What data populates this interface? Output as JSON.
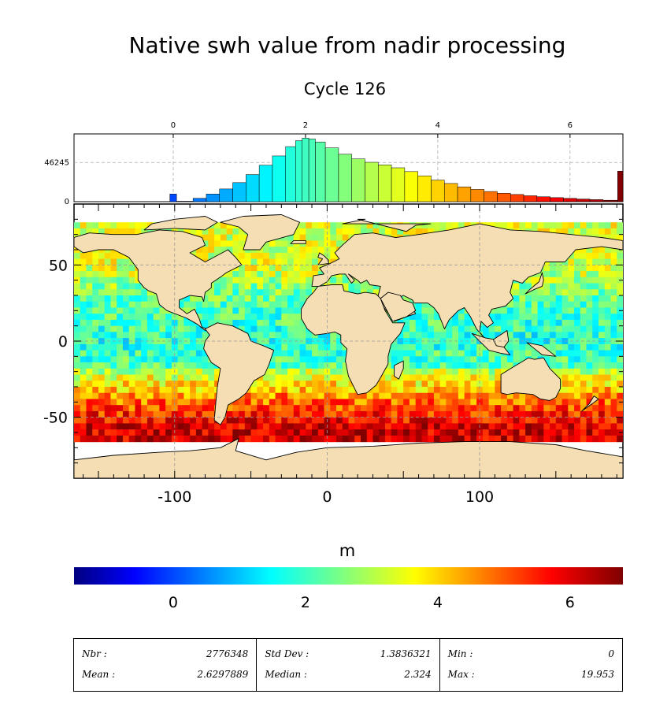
{
  "title": "Native swh value from nadir processing",
  "subtitle": "Cycle 126",
  "colorbar": {
    "unit": "m",
    "ticks": [
      "0",
      "2",
      "4",
      "6"
    ],
    "colors": [
      "#00007f",
      "#0000ff",
      "#00ffff",
      "#ffff00",
      "#ff0000",
      "#7f0000"
    ]
  },
  "land_color": "#f5deb3",
  "chart_data": [
    {
      "type": "bar",
      "title": "",
      "x_ticks": [
        0,
        2,
        4,
        6
      ],
      "y_ticks": [
        0,
        46245
      ],
      "xlim": [
        -1.5,
        6.8
      ],
      "ylim": [
        0,
        80000
      ],
      "bins": [
        [
          -0.05,
          0.05,
          9000
        ],
        [
          0.05,
          0.3,
          500
        ],
        [
          0.3,
          0.5,
          4000
        ],
        [
          0.5,
          0.7,
          9000
        ],
        [
          0.7,
          0.9,
          15000
        ],
        [
          0.9,
          1.1,
          22500
        ],
        [
          1.1,
          1.3,
          32000
        ],
        [
          1.3,
          1.5,
          43000
        ],
        [
          1.5,
          1.7,
          54000
        ],
        [
          1.7,
          1.85,
          65000
        ],
        [
          1.85,
          1.95,
          72000
        ],
        [
          1.95,
          2.05,
          75000
        ],
        [
          2.05,
          2.15,
          74000
        ],
        [
          2.15,
          2.3,
          70500
        ],
        [
          2.3,
          2.5,
          63500
        ],
        [
          2.5,
          2.7,
          56000
        ],
        [
          2.7,
          2.9,
          50500
        ],
        [
          2.9,
          3.1,
          46500
        ],
        [
          3.1,
          3.3,
          43500
        ],
        [
          3.3,
          3.5,
          40000
        ],
        [
          3.5,
          3.7,
          35500
        ],
        [
          3.7,
          3.9,
          30500
        ],
        [
          3.9,
          4.1,
          25500
        ],
        [
          4.1,
          4.3,
          21500
        ],
        [
          4.3,
          4.5,
          17500
        ],
        [
          4.5,
          4.7,
          14500
        ],
        [
          4.7,
          4.9,
          12000
        ],
        [
          4.9,
          5.1,
          10000
        ],
        [
          5.1,
          5.3,
          8500
        ],
        [
          5.3,
          5.5,
          7000
        ],
        [
          5.5,
          5.7,
          5800
        ],
        [
          5.7,
          5.9,
          4800
        ],
        [
          5.9,
          6.1,
          3900
        ],
        [
          6.1,
          6.3,
          3100
        ],
        [
          6.3,
          6.5,
          2400
        ],
        [
          6.5,
          6.72,
          1700
        ],
        [
          6.72,
          6.8,
          36000
        ]
      ]
    },
    {
      "type": "heatmap",
      "title": "",
      "x_ticks": [
        -100,
        0,
        100
      ],
      "y_ticks": [
        50,
        0,
        -50
      ],
      "xlim": [
        -166,
        194
      ],
      "ylim": [
        -90,
        90
      ],
      "value_label": "swh",
      "value_unit": "m"
    }
  ],
  "stats": [
    {
      "label": "Nbr :",
      "value": "2776348"
    },
    {
      "label": "Mean :",
      "value": "2.6297889"
    },
    {
      "label": "Std Dev :",
      "value": "1.3836321"
    },
    {
      "label": "Median :",
      "value": "2.324"
    },
    {
      "label": "Min :",
      "value": "0"
    },
    {
      "label": "Max :",
      "value": "19.953"
    }
  ]
}
